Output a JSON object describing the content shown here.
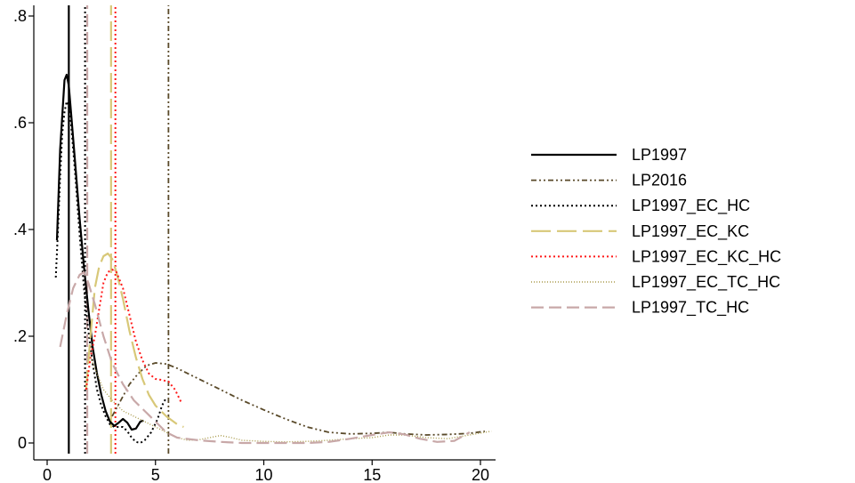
{
  "chart_data": {
    "type": "line",
    "title": "",
    "xlabel": "",
    "ylabel": "",
    "xlim": [
      0,
      21
    ],
    "ylim": [
      0,
      0.8
    ],
    "x_ticks": [
      0,
      5,
      10,
      15,
      20
    ],
    "x_tick_labels": [
      "0",
      "5",
      "10",
      "15",
      "20"
    ],
    "y_ticks": [
      0,
      0.2,
      0.4,
      0.6,
      0.8
    ],
    "y_tick_labels": [
      "0",
      ".2",
      ".4",
      ".6",
      ".8"
    ],
    "grid": false,
    "legend_position": "right",
    "series": [
      {
        "name": "LP1997",
        "color": "#000000",
        "dash": "",
        "width": 2.2,
        "points": [
          [
            0.45,
            0.38
          ],
          [
            0.6,
            0.55
          ],
          [
            0.8,
            0.68
          ],
          [
            0.9,
            0.69
          ],
          [
            1.0,
            0.67
          ],
          [
            1.1,
            0.62
          ],
          [
            1.3,
            0.52
          ],
          [
            1.5,
            0.42
          ],
          [
            1.7,
            0.33
          ],
          [
            1.9,
            0.25
          ],
          [
            2.1,
            0.18
          ],
          [
            2.3,
            0.13
          ],
          [
            2.5,
            0.09
          ],
          [
            2.7,
            0.06
          ],
          [
            2.9,
            0.04
          ],
          [
            3.1,
            0.032
          ],
          [
            3.3,
            0.038
          ],
          [
            3.5,
            0.045
          ],
          [
            3.7,
            0.038
          ],
          [
            3.9,
            0.025
          ],
          [
            4.1,
            0.027
          ],
          [
            4.3,
            0.04
          ],
          [
            4.45,
            0.042
          ]
        ],
        "vline": 1.0
      },
      {
        "name": "LP2016",
        "color": "#5a4a2a",
        "dash": "6,3,2,3,2,3",
        "width": 1.8,
        "points": [
          [
            3.0,
            0.05
          ],
          [
            3.4,
            0.08
          ],
          [
            3.8,
            0.11
          ],
          [
            4.2,
            0.13
          ],
          [
            4.6,
            0.145
          ],
          [
            5.0,
            0.15
          ],
          [
            5.5,
            0.148
          ],
          [
            6.0,
            0.14
          ],
          [
            7.0,
            0.12
          ],
          [
            8.0,
            0.1
          ],
          [
            9.0,
            0.08
          ],
          [
            10.0,
            0.062
          ],
          [
            11.0,
            0.045
          ],
          [
            12.0,
            0.03
          ],
          [
            13.0,
            0.02
          ],
          [
            14.0,
            0.017
          ],
          [
            15.0,
            0.018
          ],
          [
            15.8,
            0.02
          ],
          [
            16.5,
            0.017
          ],
          [
            17.5,
            0.015
          ],
          [
            18.5,
            0.016
          ],
          [
            19.5,
            0.018
          ],
          [
            20.2,
            0.022
          ]
        ],
        "vline": 5.6
      },
      {
        "name": "LP1997_EC_HC",
        "color": "#000000",
        "dash": "2,3",
        "width": 2,
        "points": [
          [
            0.4,
            0.31
          ],
          [
            0.5,
            0.4
          ],
          [
            0.6,
            0.5
          ],
          [
            0.7,
            0.58
          ],
          [
            0.8,
            0.62
          ],
          [
            0.9,
            0.64
          ],
          [
            1.0,
            0.63
          ],
          [
            1.1,
            0.6
          ],
          [
            1.3,
            0.5
          ],
          [
            1.5,
            0.39
          ],
          [
            1.7,
            0.29
          ],
          [
            1.9,
            0.21
          ],
          [
            2.1,
            0.15
          ],
          [
            2.3,
            0.1
          ],
          [
            2.5,
            0.07
          ],
          [
            2.7,
            0.05
          ],
          [
            2.9,
            0.035
          ],
          [
            3.1,
            0.03
          ],
          [
            3.3,
            0.03
          ],
          [
            3.5,
            0.03
          ],
          [
            3.7,
            0.022
          ],
          [
            3.9,
            0.01
          ],
          [
            4.1,
            0.002
          ],
          [
            4.3,
            0.0
          ],
          [
            4.5,
            0.005
          ],
          [
            4.8,
            0.02
          ],
          [
            5.1,
            0.045
          ],
          [
            5.3,
            0.07
          ],
          [
            5.5,
            0.085
          ]
        ],
        "vline": 1.75
      },
      {
        "name": "LP1997_EC_KC",
        "color": "#d8c878",
        "dash": "22,7",
        "width": 2.2,
        "points": [
          [
            1.8,
            0.1
          ],
          [
            2.0,
            0.2
          ],
          [
            2.2,
            0.29
          ],
          [
            2.4,
            0.33
          ],
          [
            2.6,
            0.35
          ],
          [
            2.8,
            0.355
          ],
          [
            3.0,
            0.345
          ],
          [
            3.2,
            0.32
          ],
          [
            3.5,
            0.27
          ],
          [
            3.8,
            0.21
          ],
          [
            4.1,
            0.16
          ],
          [
            4.4,
            0.12
          ],
          [
            4.7,
            0.09
          ],
          [
            5.0,
            0.07
          ],
          [
            5.5,
            0.05
          ],
          [
            6.0,
            0.035
          ],
          [
            6.3,
            0.03
          ]
        ],
        "vline": 2.95
      },
      {
        "name": "LP1997_EC_KC_HC",
        "color": "#ff1a1a",
        "dash": "2,3",
        "width": 2,
        "points": [
          [
            1.8,
            0.1
          ],
          [
            2.0,
            0.16
          ],
          [
            2.2,
            0.2
          ],
          [
            2.4,
            0.25
          ],
          [
            2.6,
            0.3
          ],
          [
            2.8,
            0.32
          ],
          [
            3.0,
            0.325
          ],
          [
            3.2,
            0.32
          ],
          [
            3.5,
            0.29
          ],
          [
            3.8,
            0.24
          ],
          [
            4.1,
            0.19
          ],
          [
            4.4,
            0.155
          ],
          [
            4.7,
            0.13
          ],
          [
            5.0,
            0.12
          ],
          [
            5.3,
            0.118
          ],
          [
            5.6,
            0.115
          ],
          [
            5.9,
            0.1
          ],
          [
            6.2,
            0.075
          ]
        ],
        "vline": 3.15
      },
      {
        "name": "LP1997_EC_TC_HC",
        "color": "#a89a4a",
        "dash": "1,2",
        "width": 1.4,
        "points": [
          [
            2.0,
            0.16
          ],
          [
            2.3,
            0.13
          ],
          [
            2.6,
            0.1
          ],
          [
            3.0,
            0.08
          ],
          [
            3.5,
            0.06
          ],
          [
            4.0,
            0.05
          ],
          [
            4.5,
            0.04
          ],
          [
            5.0,
            0.03
          ],
          [
            5.5,
            0.02
          ],
          [
            6.0,
            0.01
          ],
          [
            6.5,
            0.005
          ],
          [
            7.0,
            0.006
          ],
          [
            7.5,
            0.01
          ],
          [
            8.0,
            0.014
          ],
          [
            8.5,
            0.01
          ],
          [
            9.0,
            0.005
          ],
          [
            10.0,
            0.003
          ],
          [
            11.0,
            0.002
          ],
          [
            12.0,
            0.003
          ],
          [
            13.0,
            0.005
          ],
          [
            14.0,
            0.008
          ],
          [
            15.0,
            0.01
          ],
          [
            15.8,
            0.015
          ],
          [
            16.5,
            0.015
          ],
          [
            17.5,
            0.01
          ],
          [
            18.5,
            0.008
          ],
          [
            19.5,
            0.015
          ],
          [
            20.5,
            0.022
          ]
        ],
        "vline": null
      },
      {
        "name": "LP1997_TC_HC",
        "color": "#c8a8a8",
        "dash": "14,6",
        "width": 2.2,
        "points": [
          [
            0.6,
            0.18
          ],
          [
            0.9,
            0.24
          ],
          [
            1.2,
            0.29
          ],
          [
            1.5,
            0.315
          ],
          [
            1.7,
            0.32
          ],
          [
            1.9,
            0.3
          ],
          [
            2.2,
            0.26
          ],
          [
            2.6,
            0.2
          ],
          [
            3.0,
            0.15
          ],
          [
            3.5,
            0.11
          ],
          [
            4.0,
            0.08
          ],
          [
            4.5,
            0.06
          ],
          [
            5.0,
            0.04
          ],
          [
            5.5,
            0.02
          ],
          [
            6.0,
            0.01
          ],
          [
            7.0,
            0.005
          ],
          [
            8.0,
            0.002
          ],
          [
            9.0,
            0.0
          ],
          [
            10.0,
            0.0
          ],
          [
            11.0,
            0.0
          ],
          [
            12.0,
            0.0
          ],
          [
            13.0,
            0.002
          ],
          [
            14.0,
            0.008
          ],
          [
            15.0,
            0.015
          ],
          [
            15.8,
            0.02
          ],
          [
            16.5,
            0.016
          ],
          [
            17.2,
            0.008
          ],
          [
            18.0,
            0.002
          ],
          [
            18.8,
            0.004
          ],
          [
            19.5,
            0.02
          ]
        ],
        "vline": 1.85
      }
    ]
  }
}
